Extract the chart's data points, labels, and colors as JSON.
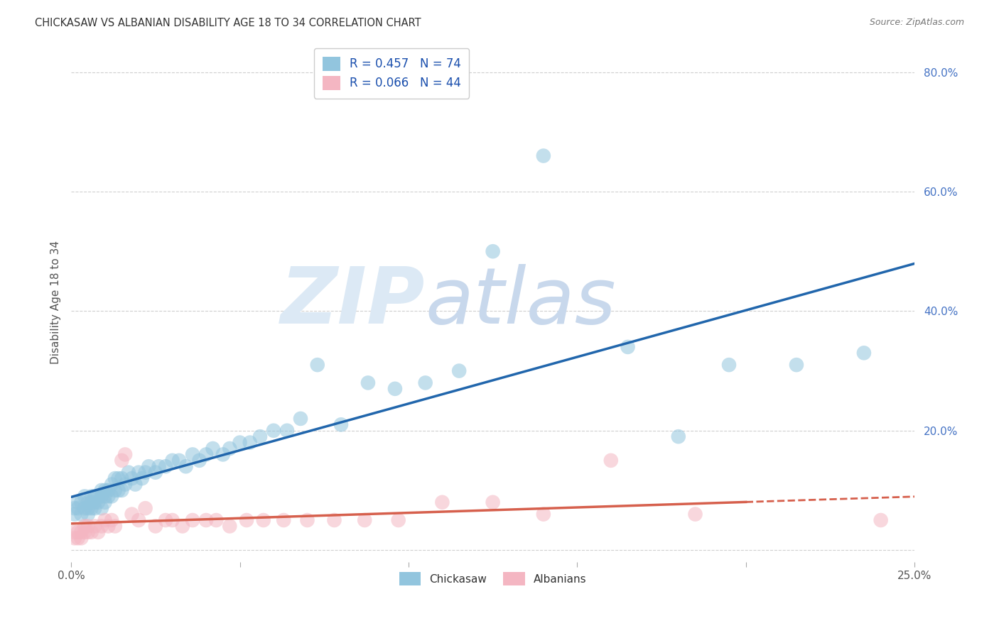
{
  "title": "CHICKASAW VS ALBANIAN DISABILITY AGE 18 TO 34 CORRELATION CHART",
  "source": "Source: ZipAtlas.com",
  "ylabel": "Disability Age 18 to 34",
  "xlim": [
    0.0,
    0.25
  ],
  "ylim": [
    -0.02,
    0.85
  ],
  "xticks": [
    0.0,
    0.05,
    0.1,
    0.15,
    0.2,
    0.25
  ],
  "xtick_labels_show": [
    "0.0%",
    "",
    "",
    "",
    "",
    "25.0%"
  ],
  "yticks": [
    0.0,
    0.2,
    0.4,
    0.6,
    0.8
  ],
  "ytick_labels": [
    "",
    "20.0%",
    "40.0%",
    "60.0%",
    "80.0%"
  ],
  "chickasaw_R": 0.457,
  "chickasaw_N": 74,
  "albanian_R": 0.066,
  "albanian_N": 44,
  "chickasaw_color": "#92c5de",
  "albanian_color": "#f4b6c2",
  "chickasaw_line_color": "#2166ac",
  "albanian_line_color": "#d6604d",
  "background_color": "#ffffff",
  "grid_color": "#bbbbbb",
  "watermark_zip": "ZIP",
  "watermark_atlas": "atlas",
  "watermark_color_zip": "#dce9f5",
  "watermark_color_atlas": "#c8d8ec",
  "legend_label_chickasaw": "Chickasaw",
  "legend_label_albanian": "Albanians",
  "chickasaw_x": [
    0.001,
    0.001,
    0.002,
    0.002,
    0.003,
    0.003,
    0.004,
    0.004,
    0.005,
    0.005,
    0.005,
    0.006,
    0.006,
    0.006,
    0.007,
    0.007,
    0.007,
    0.008,
    0.008,
    0.009,
    0.009,
    0.009,
    0.01,
    0.01,
    0.01,
    0.011,
    0.011,
    0.012,
    0.012,
    0.013,
    0.013,
    0.014,
    0.014,
    0.015,
    0.015,
    0.016,
    0.017,
    0.018,
    0.019,
    0.02,
    0.021,
    0.022,
    0.023,
    0.025,
    0.026,
    0.028,
    0.03,
    0.032,
    0.034,
    0.036,
    0.038,
    0.04,
    0.042,
    0.045,
    0.047,
    0.05,
    0.053,
    0.056,
    0.06,
    0.064,
    0.068,
    0.073,
    0.08,
    0.088,
    0.096,
    0.105,
    0.115,
    0.125,
    0.14,
    0.165,
    0.18,
    0.195,
    0.215,
    0.235
  ],
  "chickasaw_y": [
    0.06,
    0.07,
    0.07,
    0.08,
    0.06,
    0.08,
    0.07,
    0.09,
    0.06,
    0.07,
    0.08,
    0.07,
    0.08,
    0.09,
    0.07,
    0.08,
    0.09,
    0.08,
    0.09,
    0.07,
    0.09,
    0.1,
    0.08,
    0.09,
    0.1,
    0.09,
    0.1,
    0.09,
    0.11,
    0.1,
    0.12,
    0.1,
    0.12,
    0.1,
    0.12,
    0.11,
    0.13,
    0.12,
    0.11,
    0.13,
    0.12,
    0.13,
    0.14,
    0.13,
    0.14,
    0.14,
    0.15,
    0.15,
    0.14,
    0.16,
    0.15,
    0.16,
    0.17,
    0.16,
    0.17,
    0.18,
    0.18,
    0.19,
    0.2,
    0.2,
    0.22,
    0.31,
    0.21,
    0.28,
    0.27,
    0.28,
    0.3,
    0.5,
    0.66,
    0.34,
    0.19,
    0.31,
    0.31,
    0.33
  ],
  "albanian_x": [
    0.001,
    0.001,
    0.002,
    0.002,
    0.003,
    0.003,
    0.004,
    0.004,
    0.005,
    0.005,
    0.006,
    0.007,
    0.008,
    0.009,
    0.01,
    0.011,
    0.012,
    0.013,
    0.015,
    0.016,
    0.018,
    0.02,
    0.022,
    0.025,
    0.028,
    0.03,
    0.033,
    0.036,
    0.04,
    0.043,
    0.047,
    0.052,
    0.057,
    0.063,
    0.07,
    0.078,
    0.087,
    0.097,
    0.11,
    0.125,
    0.14,
    0.16,
    0.185,
    0.24
  ],
  "albanian_y": [
    0.02,
    0.03,
    0.02,
    0.03,
    0.02,
    0.03,
    0.03,
    0.04,
    0.03,
    0.04,
    0.03,
    0.04,
    0.03,
    0.04,
    0.05,
    0.04,
    0.05,
    0.04,
    0.15,
    0.16,
    0.06,
    0.05,
    0.07,
    0.04,
    0.05,
    0.05,
    0.04,
    0.05,
    0.05,
    0.05,
    0.04,
    0.05,
    0.05,
    0.05,
    0.05,
    0.05,
    0.05,
    0.05,
    0.08,
    0.08,
    0.06,
    0.15,
    0.06,
    0.05
  ]
}
